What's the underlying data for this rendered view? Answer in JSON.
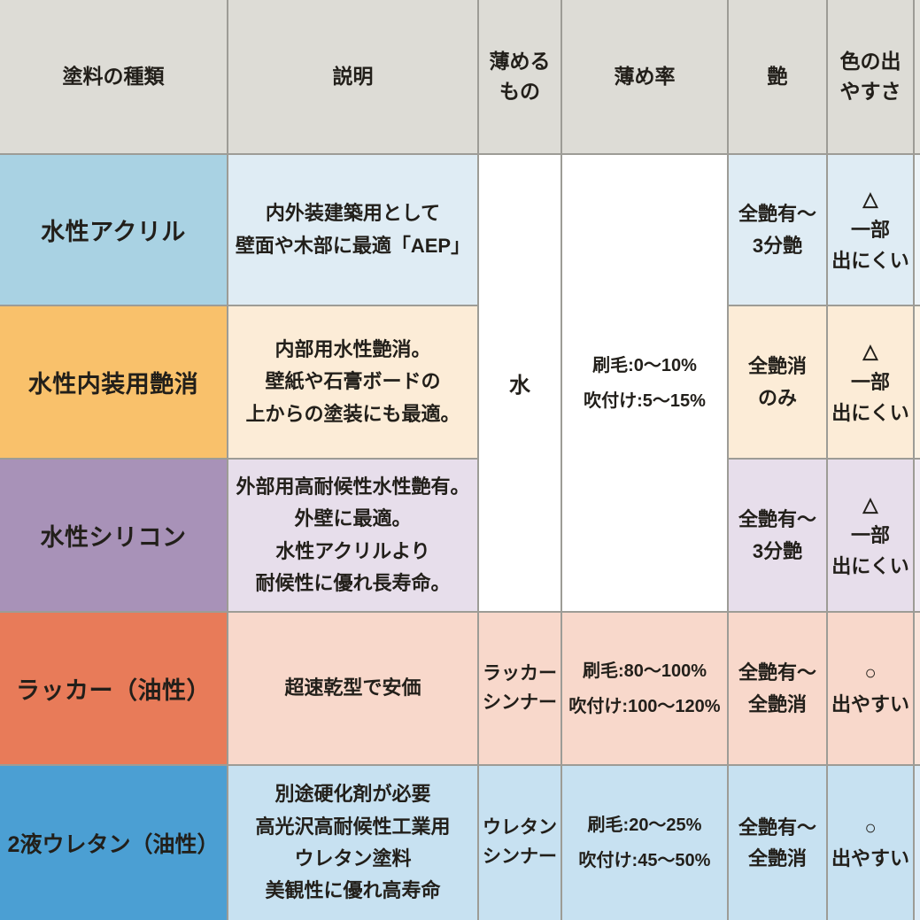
{
  "header": {
    "paint_type": "塗料の種類",
    "description": "説明",
    "thinner": "薄める\nもの",
    "ratio": "薄め率",
    "gloss": "艶",
    "color_ease": "色の出\nやすさ"
  },
  "merged": {
    "thinner": "水",
    "ratio": "刷毛:0～10%\n吹付け:5～15%"
  },
  "rows": [
    {
      "name": "水性アクリル",
      "description": "内外装建築用として\n壁面や木部に最適「AEP」",
      "gloss": "全艶有～\n3分艶",
      "color_ease": "△\n一部\n出にくい",
      "colors": {
        "main": "#a9d2e3",
        "tint": "#dfecf4",
        "edge": "#edf4f8"
      }
    },
    {
      "name": "水性内装用艶消",
      "description": "内部用水性艶消。\n壁紙や石膏ボードの\n上からの塗装にも最適。",
      "gloss": "全艶消\nのみ",
      "color_ease": "△\n一部\n出にくい",
      "colors": {
        "main": "#f9c16b",
        "tint": "#fcecd7",
        "edge": "#fdf3e4"
      }
    },
    {
      "name": "水性シリコン",
      "description": "外部用高耐候性水性艶有。\n外壁に最適。\n水性アクリルより\n耐候性に優れ長寿命。",
      "gloss": "全艶有～\n3分艶",
      "color_ease": "△\n一部\n出にくい",
      "colors": {
        "main": "#a892b8",
        "tint": "#e7deeb",
        "edge": "#f0eaf3"
      }
    },
    {
      "name": "ラッカー（油性）",
      "description": "超速乾型で安価",
      "thinner": "ラッカー\nシンナー",
      "ratio": "刷毛:80～100%\n吹付け:100～120%",
      "gloss": "全艶有～\n全艶消",
      "color_ease": "○\n出やすい",
      "colors": {
        "main": "#e87b59",
        "tint": "#f8d8cb",
        "edge": "#fae4da"
      }
    },
    {
      "name": "2液ウレタン（油性）",
      "description": "別途硬化剤が必要\n高光沢高耐候性工業用\nウレタン塗料\n美観性に優れ高寿命",
      "thinner": "ウレタン\nシンナー",
      "ratio": "刷毛:20～25%\n吹付け:45～50%",
      "gloss": "全艶有～\n全艶消",
      "color_ease": "○\n出やすい",
      "colors": {
        "main": "#4b9fd3",
        "tint": "#c7e1f1",
        "edge": "#daeaf6"
      }
    }
  ],
  "colors": {
    "header_bg": "#dddcd6",
    "header_edge": "#e2e1db",
    "grid_line": "#9d9c96",
    "merged_bg": "#ffffff",
    "text": "#221f1a"
  }
}
